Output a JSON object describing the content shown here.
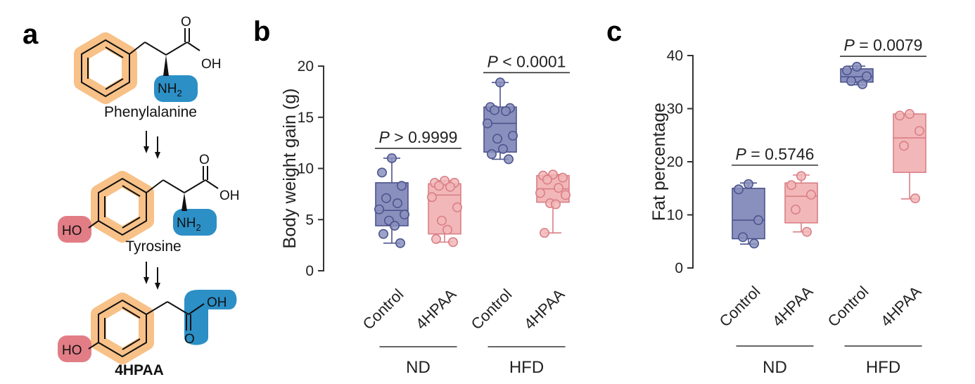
{
  "panel_labels": {
    "a": "a",
    "b": "b",
    "c": "c"
  },
  "molecules": {
    "phe_name": "Phenylalanine",
    "tyr_name": "Tyrosine",
    "hpaa_name": "4HPAA",
    "atoms": {
      "O": "O",
      "OH": "OH",
      "HO": "HO",
      "NH2": "NH",
      "sub2": "2"
    }
  },
  "colors": {
    "orange": "#f8c188",
    "blue": "#2c8fc6",
    "red": "#e27d86",
    "control_fill": "#8a90bd",
    "control_stroke": "#4c548e",
    "treat_fill": "#f2b7b9",
    "treat_stroke": "#d97f86"
  },
  "chart_data": [
    {
      "type": "box",
      "ylabel": "Body weight gain (g)",
      "ylim": [
        0,
        20
      ],
      "yticks": [
        0,
        5,
        10,
        15,
        20
      ],
      "categories": [
        "Control",
        "4HPAA",
        "Control",
        "4HPAA"
      ],
      "groups": [
        {
          "label": "ND",
          "categories": [
            0,
            1
          ]
        },
        {
          "label": "HFD",
          "categories": [
            2,
            3
          ]
        }
      ],
      "series": [
        {
          "category": "Control",
          "group": "ND",
          "min": 2.7,
          "q1": 4.4,
          "median": 5.9,
          "q3": 8.6,
          "max": 11.0,
          "points": [
            11.0,
            9.6,
            8.3,
            7.1,
            6.6,
            6.0,
            5.5,
            4.9,
            4.4,
            3.6,
            2.7
          ]
        },
        {
          "category": "4HPAA",
          "group": "ND",
          "min": 2.8,
          "q1": 3.6,
          "median": 7.4,
          "q3": 8.5,
          "max": 8.8,
          "points": [
            8.8,
            8.6,
            8.6,
            8.3,
            8.2,
            7.2,
            6.2,
            4.9,
            4.0,
            3.1,
            2.8
          ]
        },
        {
          "category": "Control",
          "group": "HFD",
          "min": 10.9,
          "q1": 11.6,
          "median": 14.4,
          "q3": 16.0,
          "max": 18.4,
          "points": [
            18.4,
            16.0,
            15.9,
            15.7,
            15.6,
            14.4,
            13.2,
            12.9,
            11.9,
            11.4,
            10.9
          ]
        },
        {
          "category": "4HPAA",
          "group": "HFD",
          "min": 3.7,
          "q1": 6.7,
          "median": 8.0,
          "q3": 9.3,
          "max": 9.4,
          "points": [
            9.4,
            9.3,
            9.1,
            8.9,
            8.1,
            7.6,
            7.4,
            6.6,
            6.5,
            3.7
          ]
        }
      ],
      "comparisons": [
        {
          "categories": [
            0,
            1
          ],
          "label": "P > 0.9999"
        },
        {
          "categories": [
            2,
            3
          ],
          "label": "P < 0.0001"
        }
      ]
    },
    {
      "type": "box",
      "ylabel": "Fat percentage",
      "ylim": [
        0,
        40
      ],
      "yticks": [
        0,
        10,
        20,
        30,
        40
      ],
      "categories": [
        "Control",
        "4HPAA",
        "Control",
        "4HPAA"
      ],
      "groups": [
        {
          "label": "ND",
          "categories": [
            0,
            1
          ]
        },
        {
          "label": "HFD",
          "categories": [
            2,
            3
          ]
        }
      ],
      "series": [
        {
          "category": "Control",
          "group": "ND",
          "min": 4.5,
          "q1": 5.5,
          "median": 9.0,
          "q3": 15.0,
          "max": 16.0,
          "points": [
            15.8,
            14.8,
            9.0,
            5.8,
            4.6
          ]
        },
        {
          "category": "4HPAA",
          "group": "ND",
          "min": 6.8,
          "q1": 8.5,
          "median": 13.5,
          "q3": 16.0,
          "max": 17.5,
          "points": [
            17.3,
            15.6,
            13.8,
            11.0,
            6.8
          ]
        },
        {
          "category": "Control",
          "group": "HFD",
          "min": 34.5,
          "q1": 35.0,
          "median": 36.0,
          "q3": 37.5,
          "max": 38.0,
          "points": [
            37.9,
            37.2,
            36.1,
            35.2,
            34.6
          ]
        },
        {
          "category": "4HPAA",
          "group": "HFD",
          "min": 13.0,
          "q1": 18.0,
          "median": 24.5,
          "q3": 29.0,
          "max": 29.0,
          "points": [
            29.0,
            28.7,
            25.8,
            23.0,
            13.1
          ]
        }
      ],
      "comparisons": [
        {
          "categories": [
            0,
            1
          ],
          "label": "P = 0.5746"
        },
        {
          "categories": [
            2,
            3
          ],
          "label": "P = 0.0079"
        }
      ]
    }
  ]
}
